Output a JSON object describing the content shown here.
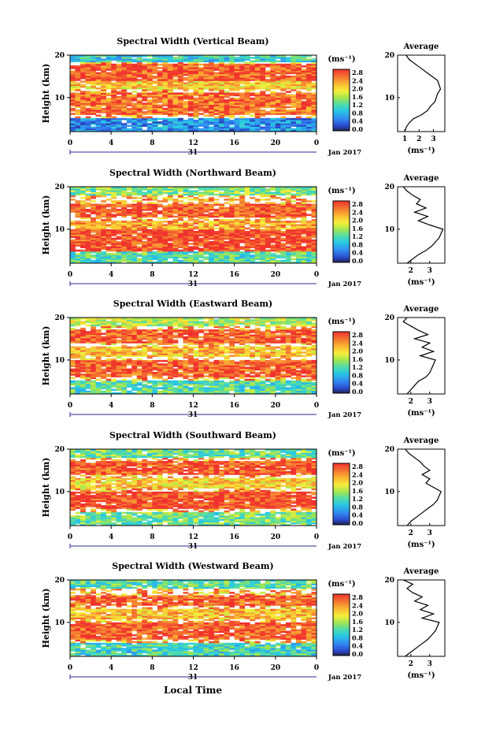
{
  "figure": {
    "date_label": "Jan 2017",
    "day_label": "31",
    "xlabel": "Local Time",
    "ylabel": "Height (km)",
    "x_ticks": [
      "0",
      "4",
      "8",
      "12",
      "16",
      "20",
      "0"
    ],
    "y_ticks": [
      "20",
      "10"
    ],
    "colorbar_unit": "(ms⁻¹)",
    "colorbar_ticks": [
      "2.8",
      "2.4",
      "2.0",
      "1.6",
      "1.2",
      "0.8",
      "0.4",
      "0.0"
    ],
    "avg_title": "Average",
    "avg_xlabel": "(ms⁻¹)"
  },
  "chart_data": [
    {
      "type": "heatmap",
      "title": "Spectral Width (Vertical Beam)",
      "x_range_hours": [
        0,
        24
      ],
      "y_range_km": [
        2,
        20
      ],
      "colorbar_range": [
        0.0,
        2.8
      ],
      "bands": [
        {
          "y": [
            18.5,
            20
          ],
          "value": 1.0
        },
        {
          "y": [
            14,
            18
          ],
          "value": 2.6
        },
        {
          "y": [
            12,
            14
          ],
          "value": 2.0
        },
        {
          "y": [
            6,
            11
          ],
          "value": 2.5
        },
        {
          "y": [
            2,
            5
          ],
          "value": 0.6
        }
      ],
      "average_profile": {
        "xticks": [
          "1",
          "2",
          "3"
        ],
        "x_range": [
          0.5,
          3.8
        ],
        "height": [
          2,
          3,
          4,
          5,
          6,
          7,
          8,
          9,
          10,
          11,
          12,
          13,
          14,
          15,
          16,
          17,
          18,
          19,
          20
        ],
        "value": [
          1.0,
          1.1,
          1.3,
          1.6,
          2.2,
          2.6,
          2.8,
          3.1,
          3.2,
          3.3,
          3.5,
          3.4,
          3.3,
          2.9,
          2.5,
          2.1,
          1.7,
          1.3,
          1.1
        ]
      }
    },
    {
      "type": "heatmap",
      "title": "Spectral Width (Northward Beam)",
      "x_range_hours": [
        0,
        24
      ],
      "y_range_km": [
        2,
        20
      ],
      "colorbar_range": [
        0.0,
        2.8
      ],
      "bands": [
        {
          "y": [
            18,
            20
          ],
          "value": 1.4
        },
        {
          "y": [
            13,
            16
          ],
          "value": 2.6
        },
        {
          "y": [
            10,
            12
          ],
          "value": 2.2
        },
        {
          "y": [
            5,
            10
          ],
          "value": 2.7
        },
        {
          "y": [
            2,
            5
          ],
          "value": 1.2
        }
      ],
      "average_profile": {
        "xticks": [
          "2",
          "3"
        ],
        "x_range": [
          1.3,
          3.8
        ],
        "height": [
          2,
          3,
          4,
          5,
          6,
          7,
          8,
          9,
          10,
          11,
          12,
          13,
          14,
          15,
          16,
          17,
          18,
          19,
          20
        ],
        "value": [
          1.8,
          2.1,
          2.4,
          2.8,
          3.1,
          3.3,
          3.5,
          3.6,
          3.7,
          3.0,
          2.4,
          2.9,
          2.2,
          2.8,
          2.3,
          2.5,
          2.1,
          1.8,
          1.6
        ]
      }
    },
    {
      "type": "heatmap",
      "title": "Spectral Width (Eastward Beam)",
      "x_range_hours": [
        0,
        24
      ],
      "y_range_km": [
        2,
        20
      ],
      "colorbar_range": [
        0.0,
        2.8
      ],
      "bands": [
        {
          "y": [
            18,
            20
          ],
          "value": 1.6
        },
        {
          "y": [
            14,
            17
          ],
          "value": 2.6
        },
        {
          "y": [
            11,
            13
          ],
          "value": 2.1
        },
        {
          "y": [
            6,
            10
          ],
          "value": 2.6
        },
        {
          "y": [
            2,
            5
          ],
          "value": 1.2
        }
      ],
      "average_profile": {
        "xticks": [
          "2",
          "3"
        ],
        "x_range": [
          1.3,
          3.8
        ],
        "height": [
          2,
          3,
          4,
          5,
          6,
          7,
          8,
          9,
          10,
          11,
          12,
          13,
          14,
          15,
          16,
          17,
          18,
          19,
          20
        ],
        "value": [
          1.8,
          2.0,
          2.2,
          2.4,
          2.8,
          3.0,
          3.1,
          3.2,
          3.3,
          2.5,
          3.2,
          2.6,
          3.0,
          2.2,
          2.9,
          2.4,
          2.0,
          1.6,
          1.8
        ]
      }
    },
    {
      "type": "heatmap",
      "title": "Spectral Width (Southward Beam)",
      "x_range_hours": [
        0,
        24
      ],
      "y_range_km": [
        2,
        20
      ],
      "colorbar_range": [
        0.0,
        2.8
      ],
      "bands": [
        {
          "y": [
            18,
            20
          ],
          "value": 1.3
        },
        {
          "y": [
            14,
            17
          ],
          "value": 2.6
        },
        {
          "y": [
            11,
            13
          ],
          "value": 2.0
        },
        {
          "y": [
            6,
            10
          ],
          "value": 2.7
        },
        {
          "y": [
            2,
            5
          ],
          "value": 1.3
        }
      ],
      "average_profile": {
        "xticks": [
          "2",
          "3"
        ],
        "x_range": [
          1.3,
          3.8
        ],
        "height": [
          2,
          3,
          4,
          5,
          6,
          7,
          8,
          9,
          10,
          11,
          12,
          13,
          14,
          15,
          16,
          17,
          18,
          19,
          20
        ],
        "value": [
          1.8,
          2.0,
          2.3,
          2.6,
          2.9,
          3.2,
          3.4,
          3.5,
          3.6,
          3.2,
          2.8,
          3.0,
          2.6,
          3.0,
          2.7,
          2.5,
          2.2,
          1.9,
          1.7
        ]
      }
    },
    {
      "type": "heatmap",
      "title": "Spectral Width (Westward Beam)",
      "x_range_hours": [
        0,
        24
      ],
      "y_range_km": [
        2,
        20
      ],
      "colorbar_range": [
        0.0,
        2.8
      ],
      "bands": [
        {
          "y": [
            18,
            20
          ],
          "value": 1.2
        },
        {
          "y": [
            14,
            16.5
          ],
          "value": 2.6
        },
        {
          "y": [
            11,
            13
          ],
          "value": 2.1
        },
        {
          "y": [
            6,
            10
          ],
          "value": 2.6
        },
        {
          "y": [
            2,
            5
          ],
          "value": 1.1
        }
      ],
      "average_profile": {
        "xticks": [
          "2",
          "3"
        ],
        "x_range": [
          1.3,
          3.8
        ],
        "height": [
          2,
          3,
          4,
          5,
          6,
          7,
          8,
          9,
          10,
          11,
          12,
          13,
          14,
          15,
          16,
          17,
          18,
          19,
          20
        ],
        "value": [
          1.7,
          2.0,
          2.3,
          2.6,
          2.9,
          3.1,
          3.3,
          3.4,
          3.5,
          2.6,
          3.2,
          2.5,
          2.9,
          2.2,
          2.6,
          2.1,
          1.8,
          2.1,
          1.6
        ]
      }
    }
  ]
}
